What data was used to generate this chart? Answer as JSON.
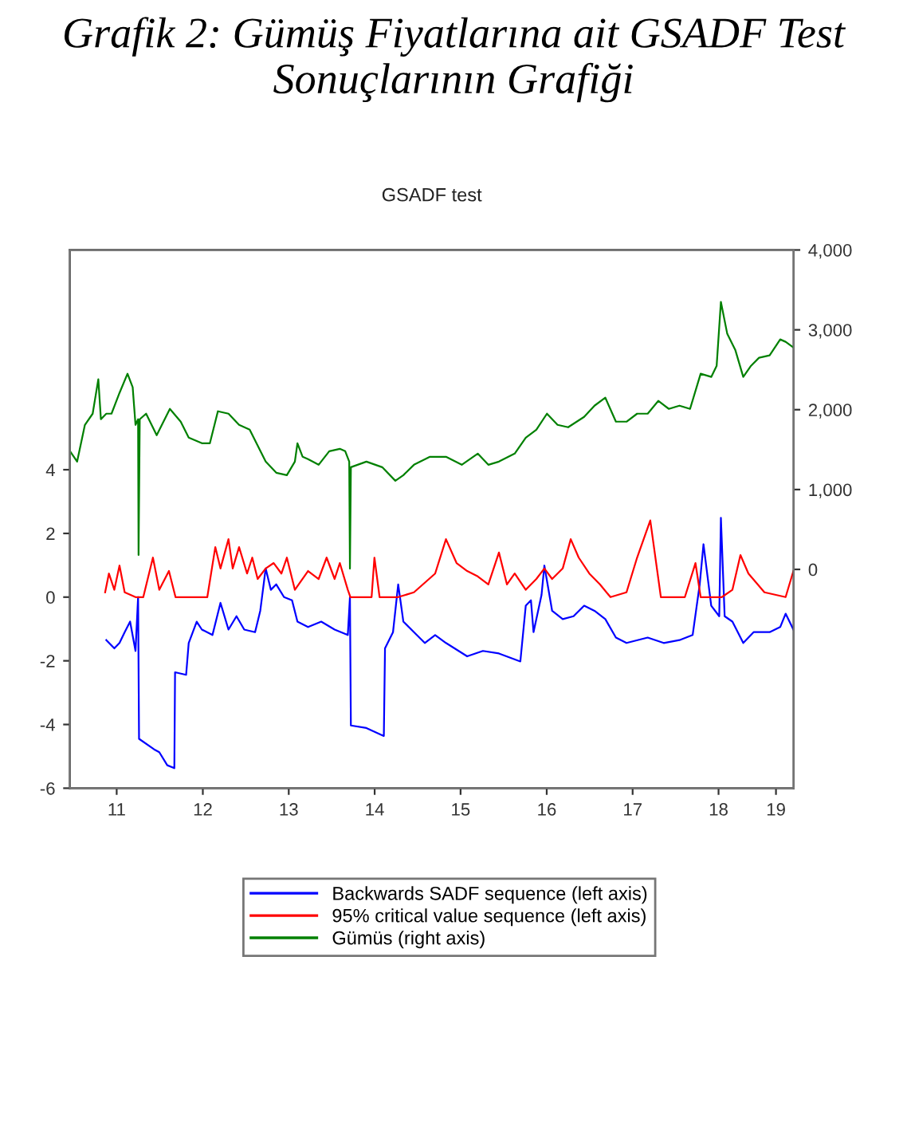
{
  "chart_data": {
    "type": "line",
    "title": "Grafik 2: Gümüş Fiyatlarına ait GSADF Test Sonuçlarının Grafiği",
    "subtitle": "GSADF test",
    "xlim": [
      "2010-12-15",
      "2019-05-17"
    ],
    "xticks": [
      {
        "value": "2011-07-02",
        "label": "11"
      },
      {
        "value": "2012-07-02",
        "label": "12"
      },
      {
        "value": "2013-07-02",
        "label": "13"
      },
      {
        "value": "2014-07-02",
        "label": "14"
      },
      {
        "value": "2015-07-02",
        "label": "15"
      },
      {
        "value": "2016-07-02",
        "label": "16"
      },
      {
        "value": "2017-07-02",
        "label": "17"
      },
      {
        "value": "2018-07-02",
        "label": "18"
      },
      {
        "value": "2019-03-03",
        "label": "19"
      }
    ],
    "ylim": [
      -6,
      10.9
    ],
    "yticks": [
      -6,
      -4,
      -2,
      0,
      2,
      4
    ],
    "y2lim": [
      -2740,
      4000
    ],
    "y2ticks": [
      {
        "value": 0,
        "label": "0"
      },
      {
        "value": 1000,
        "label": "1,000"
      },
      {
        "value": 2000,
        "label": "2,000"
      },
      {
        "value": 3000,
        "label": "3,000"
      },
      {
        "value": 4000,
        "label": "4,000"
      }
    ],
    "grid": false,
    "legend": "bottom",
    "line_style": "solid",
    "marker": "none",
    "series": [
      {
        "name": "Backwards SADF sequence (left axis)",
        "color": "#0000ff",
        "x": [
          "2011-05-19",
          "2011-06-22",
          "2011-07-14",
          "2011-08-05",
          "2011-08-28",
          "2011-09-20",
          "2011-10-01",
          "2011-10-05",
          "2011-12-08",
          "2011-12-30",
          "2012-02-02",
          "2012-03-03",
          "2012-03-06",
          "2012-04-22",
          "2012-05-03",
          "2012-06-06",
          "2012-06-28",
          "2012-08-12",
          "2012-09-15",
          "2012-10-19",
          "2012-11-22",
          "2012-12-25",
          "2013-02-09",
          "2013-03-03",
          "2013-03-26",
          "2013-04-17",
          "2013-05-10",
          "2013-06-12",
          "2013-07-16",
          "2013-08-08",
          "2013-09-22",
          "2013-11-17",
          "2014-01-13",
          "2014-03-10",
          "2014-03-19",
          "2014-03-23",
          "2014-05-28",
          "2014-08-10",
          "2014-08-15",
          "2014-09-18",
          "2014-10-10",
          "2014-11-01",
          "2014-12-16",
          "2015-01-31",
          "2015-03-16",
          "2015-05-01",
          "2015-07-30",
          "2015-10-05",
          "2015-12-12",
          "2016-03-12",
          "2016-04-04",
          "2016-04-26",
          "2016-05-07",
          "2016-06-10",
          "2016-06-22",
          "2016-07-25",
          "2016-09-08",
          "2016-10-24",
          "2016-12-08",
          "2017-01-21",
          "2017-03-08",
          "2017-04-22",
          "2017-06-06",
          "2017-09-04",
          "2017-11-11",
          "2018-01-17",
          "2018-03-14",
          "2018-04-13",
          "2018-04-29",
          "2018-06-01",
          "2018-07-05",
          "2018-07-12",
          "2018-07-28",
          "2018-08-30",
          "2018-10-15",
          "2018-11-28",
          "2019-02-04",
          "2019-03-21",
          "2019-04-13",
          "2019-05-16"
        ],
        "values": [
          -1.35,
          -1.61,
          -1.44,
          -1.1,
          -0.77,
          -1.69,
          0,
          -4.45,
          -4.78,
          -4.87,
          -5.28,
          -5.37,
          -2.36,
          -2.44,
          -1.44,
          -0.77,
          -1.02,
          -1.19,
          -0.18,
          -1.02,
          -0.6,
          -1.02,
          -1.1,
          -0.43,
          0.9,
          0.23,
          0.4,
          0,
          -0.1,
          -0.77,
          -0.94,
          -0.77,
          -1.02,
          -1.19,
          0,
          -4.03,
          -4.11,
          -4.36,
          -1.61,
          -1.1,
          0.4,
          -0.77,
          -1.1,
          -1.44,
          -1.19,
          -1.44,
          -1.86,
          -1.69,
          -1.77,
          -2.02,
          -0.27,
          -0.1,
          -1.1,
          0.07,
          0.99,
          -0.43,
          -0.69,
          -0.6,
          -0.27,
          -0.43,
          -0.69,
          -1.27,
          -1.44,
          -1.27,
          -1.44,
          -1.35,
          -1.19,
          0.4,
          1.66,
          -0.27,
          -0.6,
          2.49,
          -0.6,
          -0.77,
          -1.44,
          -1.1,
          -1.1,
          -0.94,
          -0.52,
          -1.02
        ]
      },
      {
        "name": "95% critical value sequence (left axis)",
        "color": "#ff0000",
        "x": [
          "2011-05-14",
          "2011-05-30",
          "2011-06-22",
          "2011-07-14",
          "2011-08-05",
          "2011-09-20",
          "2011-10-23",
          "2011-12-03",
          "2011-12-30",
          "2012-02-09",
          "2012-03-08",
          "2012-06-06",
          "2012-07-21",
          "2012-08-24",
          "2012-09-15",
          "2012-10-19",
          "2012-11-06",
          "2012-12-03",
          "2013-01-06",
          "2013-01-28",
          "2013-02-20",
          "2013-03-26",
          "2013-04-29",
          "2013-06-01",
          "2013-06-24",
          "2013-07-28",
          "2013-09-22",
          "2013-11-06",
          "2013-12-10",
          "2014-01-13",
          "2014-02-04",
          "2014-03-10",
          "2014-03-21",
          "2014-06-19",
          "2014-07-01",
          "2014-07-23",
          "2014-10-10",
          "2014-12-16",
          "2015-03-16",
          "2015-05-01",
          "2015-06-15",
          "2015-07-30",
          "2015-09-13",
          "2015-10-28",
          "2015-12-12",
          "2016-01-15",
          "2016-02-17",
          "2016-04-04",
          "2016-05-19",
          "2016-06-22",
          "2016-07-25",
          "2016-09-08",
          "2016-10-12",
          "2016-11-15",
          "2016-12-30",
          "2017-02-13",
          "2017-03-30",
          "2017-06-06",
          "2017-07-21",
          "2017-09-15",
          "2017-10-30",
          "2018-02-09",
          "2018-03-26",
          "2018-04-17",
          "2018-07-16",
          "2018-08-30",
          "2018-10-03",
          "2018-11-06",
          "2019-01-13",
          "2019-04-13",
          "2019-05-16"
        ],
        "values": [
          0.15,
          0.74,
          0.23,
          0.99,
          0.15,
          0,
          0,
          1.24,
          0.23,
          0.82,
          0,
          0,
          0,
          1.57,
          0.9,
          1.82,
          0.9,
          1.57,
          0.74,
          1.24,
          0.57,
          0.9,
          1.07,
          0.74,
          1.24,
          0.23,
          0.82,
          0.57,
          1.24,
          0.57,
          1.07,
          0.23,
          0,
          0,
          1.24,
          0,
          0,
          0.15,
          0.74,
          1.82,
          1.07,
          0.82,
          0.65,
          0.4,
          1.4,
          0.4,
          0.74,
          0.23,
          0.57,
          0.9,
          0.57,
          0.9,
          1.82,
          1.24,
          0.74,
          0.4,
          0,
          0.15,
          1.24,
          2.41,
          0,
          0,
          1.07,
          0,
          0,
          0.23,
          1.32,
          0.74,
          0.15,
          0,
          0.82
        ]
      },
      {
        "name": "Gümüs (right axis)",
        "color": "#008000",
        "axis": "y2",
        "x": [
          "2010-12-16",
          "2011-01-15",
          "2011-02-17",
          "2011-03-22",
          "2011-04-15",
          "2011-04-26",
          "2011-05-19",
          "2011-06-10",
          "2011-07-14",
          "2011-08-17",
          "2011-09-08",
          "2011-09-20",
          "2011-10-01",
          "2011-10-03",
          "2011-10-08",
          "2011-11-04",
          "2011-12-19",
          "2012-02-13",
          "2012-03-30",
          "2012-05-03",
          "2012-06-28",
          "2012-08-01",
          "2012-09-04",
          "2012-10-19",
          "2012-12-03",
          "2013-01-17",
          "2013-03-26",
          "2013-05-10",
          "2013-06-24",
          "2013-07-28",
          "2013-08-08",
          "2013-08-30",
          "2013-09-22",
          "2013-11-06",
          "2013-12-21",
          "2014-02-04",
          "2014-02-27",
          "2014-03-16",
          "2014-03-19",
          "2014-03-23",
          "2014-05-28",
          "2014-08-03",
          "2014-09-28",
          "2014-11-01",
          "2014-12-16",
          "2015-02-22",
          "2015-05-01",
          "2015-07-07",
          "2015-09-13",
          "2015-10-28",
          "2015-12-12",
          "2016-02-17",
          "2016-04-04",
          "2016-05-19",
          "2016-07-03",
          "2016-08-17",
          "2016-10-01",
          "2016-12-08",
          "2017-01-21",
          "2017-03-08",
          "2017-04-22",
          "2017-06-06",
          "2017-07-21",
          "2017-09-04",
          "2017-10-19",
          "2017-12-03",
          "2018-01-17",
          "2018-03-03",
          "2018-04-17",
          "2018-06-01",
          "2018-06-24",
          "2018-07-12",
          "2018-08-08",
          "2018-09-11",
          "2018-10-15",
          "2018-11-17",
          "2018-12-21",
          "2019-02-04",
          "2019-03-21",
          "2019-04-13",
          "2019-05-16"
        ],
        "values": [
          1480,
          1350,
          1810,
          1950,
          2380,
          1880,
          1950,
          1950,
          2210,
          2450,
          2280,
          1810,
          1880,
          180,
          1880,
          1950,
          1680,
          2010,
          1850,
          1650,
          1580,
          1580,
          1980,
          1950,
          1810,
          1750,
          1350,
          1210,
          1180,
          1350,
          1580,
          1410,
          1380,
          1310,
          1480,
          1510,
          1480,
          1350,
          10,
          1280,
          1350,
          1280,
          1110,
          1180,
          1310,
          1410,
          1410,
          1310,
          1450,
          1310,
          1350,
          1450,
          1650,
          1750,
          1950,
          1810,
          1780,
          1910,
          2050,
          2150,
          1850,
          1850,
          1950,
          1950,
          2110,
          2010,
          2050,
          2010,
          2450,
          2410,
          2550,
          3350,
          2950,
          2750,
          2410,
          2550,
          2650,
          2680,
          2880,
          2850,
          2780
        ]
      }
    ]
  }
}
